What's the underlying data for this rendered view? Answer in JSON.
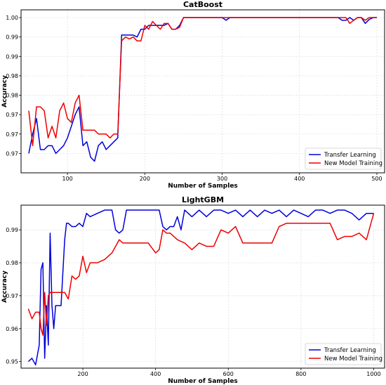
{
  "chart_data": [
    {
      "type": "line",
      "title": "CatBoost",
      "xlabel": "Number of Samples",
      "ylabel": "Accuracy",
      "xlim": [
        40,
        510
      ],
      "ylim": [
        0.96,
        1.002
      ],
      "xticks": [
        100,
        200,
        300,
        400,
        500
      ],
      "yticks": [
        0.965,
        0.97,
        0.975,
        0.98,
        0.985,
        0.99,
        0.995,
        1.0
      ],
      "ytick_labels": [
        "0.97",
        "0.97",
        "0.97",
        "0.98",
        "0.98",
        "0.99",
        "0.99",
        "1.00"
      ],
      "grid": true,
      "legend": "lower-right",
      "series": [
        {
          "name": "Transfer Learning",
          "color": "#0000dd",
          "x": [
            50,
            55,
            60,
            65,
            70,
            75,
            80,
            85,
            90,
            95,
            100,
            105,
            110,
            115,
            120,
            125,
            130,
            135,
            140,
            145,
            150,
            155,
            160,
            165,
            170,
            175,
            180,
            185,
            190,
            195,
            200,
            205,
            210,
            215,
            220,
            225,
            230,
            235,
            240,
            245,
            250,
            300,
            305,
            310,
            450,
            455,
            460,
            465,
            470,
            475,
            480,
            485,
            490,
            495,
            500
          ],
          "y": [
            0.965,
            0.97,
            0.974,
            0.966,
            0.966,
            0.967,
            0.967,
            0.965,
            0.966,
            0.967,
            0.969,
            0.972,
            0.975,
            0.977,
            0.967,
            0.968,
            0.964,
            0.963,
            0.967,
            0.968,
            0.966,
            0.967,
            0.968,
            0.969,
            0.9955,
            0.9955,
            0.9955,
            0.9955,
            0.995,
            0.997,
            0.997,
            0.998,
            0.998,
            0.998,
            0.998,
            0.998,
            0.9985,
            0.997,
            0.997,
            0.998,
            1.0,
            1.0,
            0.9993,
            1.0,
            1.0,
            0.9993,
            0.9993,
            1.0,
            0.9993,
            1.0,
            1.0,
            0.9985,
            0.9995,
            1.0,
            1.0
          ]
        },
        {
          "name": "New Model Training",
          "color": "#ee0000",
          "x": [
            50,
            55,
            60,
            65,
            70,
            75,
            80,
            85,
            90,
            95,
            100,
            105,
            110,
            115,
            120,
            125,
            130,
            135,
            140,
            145,
            150,
            155,
            160,
            165,
            170,
            175,
            180,
            185,
            190,
            195,
            200,
            205,
            210,
            215,
            220,
            225,
            230,
            235,
            240,
            245,
            250,
            300,
            460,
            465,
            470,
            475,
            480,
            485,
            490,
            495,
            500
          ],
          "y": [
            0.976,
            0.967,
            0.977,
            0.977,
            0.976,
            0.969,
            0.972,
            0.969,
            0.976,
            0.978,
            0.974,
            0.973,
            0.978,
            0.98,
            0.971,
            0.971,
            0.971,
            0.971,
            0.97,
            0.97,
            0.97,
            0.969,
            0.97,
            0.97,
            0.994,
            0.995,
            0.9945,
            0.995,
            0.994,
            0.994,
            0.998,
            0.997,
            0.999,
            0.998,
            0.997,
            0.9985,
            0.9985,
            0.997,
            0.997,
            0.9975,
            1.0,
            1.0,
            1.0,
            0.9985,
            0.9993,
            1.0,
            1.0,
            0.9993,
            1.0,
            1.0,
            1.0
          ]
        }
      ]
    },
    {
      "type": "line",
      "title": "LightGBM",
      "xlabel": "Number of Samples",
      "ylabel": "Accuracy",
      "xlim": [
        30,
        1030
      ],
      "ylim": [
        0.948,
        0.9975
      ],
      "xticks": [
        200,
        400,
        600,
        800,
        1000
      ],
      "yticks": [
        0.95,
        0.96,
        0.97,
        0.98,
        0.99
      ],
      "ytick_labels": [
        "0.95",
        "0.96",
        "0.97",
        "0.98",
        "0.99"
      ],
      "grid": true,
      "legend": "lower-right",
      "series": [
        {
          "name": "Transfer Learning",
          "color": "#0000dd",
          "x": [
            50,
            60,
            70,
            80,
            85,
            90,
            95,
            100,
            105,
            110,
            115,
            120,
            125,
            130,
            140,
            150,
            155,
            160,
            170,
            180,
            190,
            200,
            210,
            220,
            240,
            260,
            280,
            290,
            300,
            310,
            320,
            330,
            340,
            350,
            400,
            410,
            420,
            430,
            440,
            450,
            460,
            470,
            480,
            500,
            520,
            540,
            560,
            580,
            600,
            620,
            640,
            660,
            680,
            700,
            720,
            740,
            760,
            780,
            800,
            820,
            840,
            860,
            880,
            900,
            920,
            940,
            960,
            980,
            1000
          ],
          "y": [
            0.95,
            0.951,
            0.949,
            0.955,
            0.978,
            0.98,
            0.951,
            0.967,
            0.955,
            0.989,
            0.967,
            0.96,
            0.967,
            0.967,
            0.967,
            0.987,
            0.992,
            0.992,
            0.991,
            0.991,
            0.992,
            0.991,
            0.995,
            0.994,
            0.995,
            0.996,
            0.996,
            0.99,
            0.989,
            0.99,
            0.996,
            0.996,
            0.996,
            0.996,
            0.996,
            0.996,
            0.991,
            0.99,
            0.991,
            0.991,
            0.994,
            0.99,
            0.996,
            0.994,
            0.996,
            0.994,
            0.996,
            0.996,
            0.995,
            0.996,
            0.994,
            0.996,
            0.994,
            0.996,
            0.995,
            0.996,
            0.994,
            0.996,
            0.995,
            0.994,
            0.996,
            0.996,
            0.995,
            0.996,
            0.996,
            0.995,
            0.993,
            0.995,
            0.995
          ]
        },
        {
          "name": "New Model Training",
          "color": "#ee0000",
          "x": [
            50,
            60,
            70,
            80,
            85,
            90,
            95,
            100,
            105,
            110,
            115,
            120,
            150,
            160,
            170,
            180,
            190,
            200,
            210,
            220,
            240,
            260,
            280,
            290,
            300,
            310,
            320,
            340,
            360,
            380,
            400,
            410,
            420,
            430,
            440,
            460,
            480,
            500,
            520,
            540,
            560,
            580,
            600,
            620,
            640,
            660,
            680,
            700,
            720,
            740,
            760,
            780,
            800,
            820,
            840,
            860,
            880,
            900,
            920,
            940,
            960,
            980,
            1000
          ],
          "y": [
            0.966,
            0.963,
            0.965,
            0.965,
            0.96,
            0.958,
            0.971,
            0.961,
            0.97,
            0.971,
            0.971,
            0.971,
            0.971,
            0.969,
            0.976,
            0.975,
            0.976,
            0.982,
            0.977,
            0.98,
            0.98,
            0.981,
            0.983,
            0.985,
            0.987,
            0.986,
            0.986,
            0.986,
            0.986,
            0.986,
            0.983,
            0.984,
            0.99,
            0.989,
            0.989,
            0.987,
            0.986,
            0.984,
            0.986,
            0.985,
            0.985,
            0.99,
            0.989,
            0.991,
            0.986,
            0.986,
            0.986,
            0.986,
            0.986,
            0.991,
            0.992,
            0.992,
            0.992,
            0.992,
            0.992,
            0.992,
            0.992,
            0.987,
            0.988,
            0.988,
            0.989,
            0.987,
            0.995
          ]
        }
      ]
    }
  ]
}
